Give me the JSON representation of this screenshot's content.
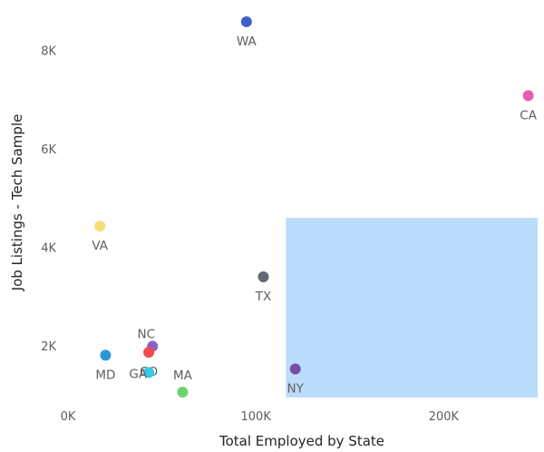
{
  "chart_data": {
    "type": "scatter",
    "title": "",
    "xlabel": "Total Employed by State",
    "ylabel": "Job Listings - Tech Sample",
    "xlim": [
      0,
      250000
    ],
    "ylim": [
      950,
      8800
    ],
    "x_ticks": [
      {
        "value": 0,
        "label": "0K"
      },
      {
        "value": 100000,
        "label": "100K"
      },
      {
        "value": 200000,
        "label": "200K"
      }
    ],
    "y_ticks": [
      {
        "value": 2000,
        "label": "2K"
      },
      {
        "value": 4000,
        "label": "4K"
      },
      {
        "value": 6000,
        "label": "6K"
      },
      {
        "value": 8000,
        "label": "8K"
      }
    ],
    "grid": false,
    "points": [
      {
        "label": "WA",
        "x": 95000,
        "y": 8580,
        "color": "#3f5ec8",
        "label_pos": "below"
      },
      {
        "label": "CA",
        "x": 245000,
        "y": 7080,
        "color": "#e85bb5",
        "label_pos": "below"
      },
      {
        "label": "VA",
        "x": 17000,
        "y": 4430,
        "color": "#f5de75",
        "label_pos": "below"
      },
      {
        "label": "TX",
        "x": 104000,
        "y": 3400,
        "color": "#646a70",
        "label_pos": "below"
      },
      {
        "label": "NY",
        "x": 121000,
        "y": 1530,
        "color": "#7b4ba8",
        "label_pos": "below"
      },
      {
        "label": "NC",
        "x": 45000,
        "y": 1990,
        "color": "#8a5fc8",
        "label_pos": "above-left"
      },
      {
        "label": "CO",
        "x": 43000,
        "y": 1870,
        "color": "#f04a4a",
        "label_pos": "below"
      },
      {
        "label": "MD",
        "x": 20000,
        "y": 1810,
        "color": "#2b97d6",
        "label_pos": "below"
      },
      {
        "label": "GA",
        "x": 43000,
        "y": 1460,
        "color": "#36c8e6",
        "label_pos": "left"
      },
      {
        "label": "MA",
        "x": 61000,
        "y": 1060,
        "color": "#6ad46a",
        "label_pos": "above"
      }
    ],
    "selection_range": {
      "x": [
        116000,
        250000
      ],
      "y": [
        950,
        4600
      ]
    },
    "selection_color": "#bcdcfc"
  }
}
